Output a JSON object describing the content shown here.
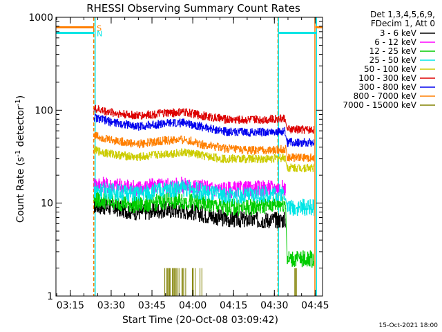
{
  "chart_data": {
    "type": "line",
    "title": "RHESSI Observing Summary Count Rates",
    "xlabel": "Start Time (20-Oct-08 03:09:42)",
    "ylabel_main": "Count Rate (s",
    "ylabel_sup1": "-1",
    "ylabel_mid": " detector",
    "ylabel_sup2": "-1",
    "ylabel_end": ")",
    "yscale": "log",
    "ylim": [
      1,
      1000
    ],
    "xlim_minutes": [
      0,
      98
    ],
    "yticks": [
      {
        "value": 1,
        "label": "1"
      },
      {
        "value": 10,
        "label": "10"
      },
      {
        "value": 100,
        "label": "100"
      },
      {
        "value": 1000,
        "label": "1000"
      }
    ],
    "xticks": [
      {
        "minute": 5.3,
        "label": "03:15"
      },
      {
        "minute": 20.3,
        "label": "03:30"
      },
      {
        "minute": 35.3,
        "label": "03:45"
      },
      {
        "minute": 50.3,
        "label": "04:00"
      },
      {
        "minute": 65.3,
        "label": "04:15"
      },
      {
        "minute": 80.3,
        "label": "04:30"
      },
      {
        "minute": 95.3,
        "label": "04:45"
      }
    ],
    "legend_header": [
      "Det 1,3,4,5,6,9,",
      "FDecim 1, Att 0"
    ],
    "series": [
      {
        "name": "3 - 6 keV",
        "color": "#000000",
        "x": [
          14,
          20,
          30,
          40,
          48,
          55,
          62,
          70,
          78,
          84.5
        ],
        "values": [
          9.5,
          9.0,
          8.0,
          8.5,
          8.3,
          7.5,
          6.8,
          6.6,
          6.6,
          6.6
        ]
      },
      {
        "name": "6 - 12 keV",
        "color": "#ff00ff",
        "x": [
          14,
          20,
          30,
          40,
          48,
          55,
          62,
          70,
          78,
          84.5
        ],
        "values": [
          16,
          15.5,
          14.5,
          15.5,
          15.5,
          14.5,
          14,
          14,
          14.5,
          14.5
        ]
      },
      {
        "name": "12 - 25 keV",
        "color": "#00cc00",
        "x": [
          14,
          20,
          30,
          40,
          48,
          55,
          62,
          70,
          78,
          84.5,
          85,
          89,
          89.5,
          95
        ],
        "values": [
          11,
          10.5,
          9.5,
          10.5,
          10.5,
          9.8,
          9,
          9,
          9.5,
          10,
          2.5,
          2.5,
          2.5,
          2.5
        ]
      },
      {
        "name": "25 - 50 keV",
        "color": "#00e5e5",
        "x": [
          14,
          20,
          30,
          40,
          48,
          55,
          62,
          70,
          78,
          84.5,
          85,
          95
        ],
        "values": [
          14,
          13.5,
          12.5,
          14,
          14.5,
          13,
          12,
          12,
          12.5,
          13,
          9,
          9
        ]
      },
      {
        "name": "50 - 100 keV",
        "color": "#cccc00",
        "x": [
          14,
          20,
          30,
          40,
          48,
          55,
          62,
          70,
          78,
          84.5,
          85,
          95
        ],
        "values": [
          37,
          34,
          31,
          34,
          35,
          32,
          30,
          30,
          30,
          31,
          24,
          24
        ]
      },
      {
        "name": "100 - 300 keV",
        "color": "#dd0000",
        "x": [
          14,
          20,
          30,
          40,
          48,
          55,
          62,
          70,
          78,
          84.5,
          85,
          95
        ],
        "values": [
          104,
          95,
          87,
          93,
          95,
          86,
          80,
          79,
          80,
          82,
          62,
          62
        ]
      },
      {
        "name": "300 - 800 keV",
        "color": "#0000ee",
        "x": [
          14,
          20,
          30,
          40,
          48,
          55,
          62,
          70,
          78,
          84.5,
          85,
          95
        ],
        "values": [
          84,
          75,
          67,
          72,
          73,
          65,
          59,
          58,
          58,
          59,
          45,
          45
        ]
      },
      {
        "name": "800 - 7000 keV",
        "color": "#ff7f00",
        "x": [
          14,
          20,
          30,
          40,
          48,
          55,
          62,
          70,
          78,
          84.5,
          85,
          95
        ],
        "values": [
          54,
          48,
          43,
          47,
          48,
          42,
          39,
          37,
          37,
          38,
          31,
          31
        ]
      },
      {
        "name": "7000 - 15000 keV",
        "color": "#808000",
        "x": [
          40,
          42,
          44,
          46,
          48,
          50,
          52,
          54
        ],
        "values": [
          2,
          2,
          2,
          2,
          2,
          2,
          2,
          2
        ]
      }
    ],
    "flags": [
      {
        "label": "S",
        "color": "#ff7f00",
        "value": 780,
        "x_start": 0,
        "x_end": 14
      },
      {
        "label": "N",
        "color": "#00e5e5",
        "value": 680,
        "x_start": 0,
        "x_end": 14
      },
      {
        "label": "",
        "color": "#ff7f00",
        "value": 780,
        "x_start": 95.5,
        "x_end": 98
      },
      {
        "label": "",
        "color": "#00e5e5",
        "value": 680,
        "x_start": 81.8,
        "x_end": 95.8
      }
    ],
    "vlines": [
      {
        "minute": 13.9,
        "color": "#ff7f00",
        "style": "dashed"
      },
      {
        "minute": 14.4,
        "color": "#00e5e5",
        "style": "solid"
      },
      {
        "minute": 81.6,
        "color": "#ff7f00",
        "style": "dashed"
      },
      {
        "minute": 81.8,
        "color": "#00e5e5",
        "style": "solid"
      },
      {
        "minute": 95.2,
        "color": "#ff7f00",
        "style": "solid"
      },
      {
        "minute": 95.8,
        "color": "#00e5e5",
        "style": "solid"
      }
    ]
  },
  "footer": {
    "timestamp": "15-Oct-2021 18:00"
  }
}
